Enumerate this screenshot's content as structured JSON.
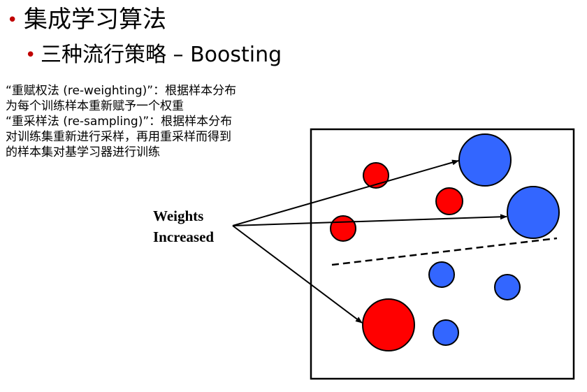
{
  "heading": {
    "bullet": "•",
    "title": "集成学习算法",
    "sub_bullet": "•",
    "subtitle": "三种流行策略 – Boosting"
  },
  "description_lines": [
    "“重赋权法 (re-weighting)”：根据样本分布",
    "为每个训练样本重新赋予一个权重",
    "“重采样法 (re-sampling)”：根据样本分布",
    "对训练集重新进行采样，再用重采样而得到",
    "的样本集对基学习器进行训练"
  ],
  "diagram": {
    "label_line1": "Weights",
    "label_line2": "Increased",
    "colors": {
      "red": "#ff0000",
      "blue": "#3366ff",
      "stroke": "#000000"
    }
  }
}
